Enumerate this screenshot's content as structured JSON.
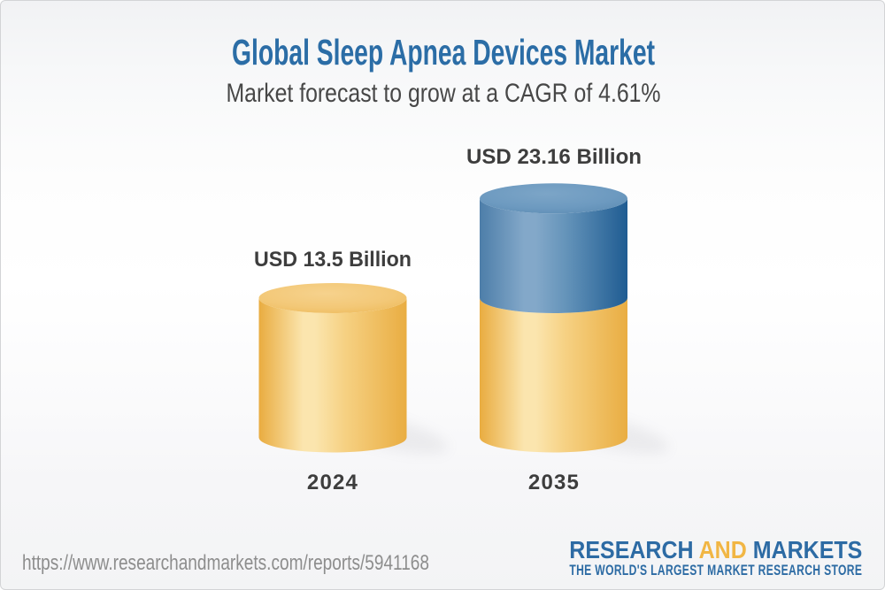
{
  "header": {
    "title": "Global Sleep Apnea Devices Market",
    "subtitle": "Market forecast to grow at a CAGR of 4.61%",
    "title_color": "#2b6da6",
    "subtitle_color": "#474747"
  },
  "chart_data": {
    "type": "bar",
    "subtype": "3d-cylinder",
    "title": "Global Sleep Apnea Devices Market",
    "subtitle": "Market forecast to grow at a CAGR of 4.61%",
    "unit": "USD Billion",
    "cagr_percent": 4.61,
    "categories": [
      "2024",
      "2035"
    ],
    "values": [
      13.5,
      23.16
    ],
    "bars": [
      {
        "category": "2024",
        "value": 13.5,
        "value_label": "USD 13.5 Billion",
        "stack": [
          {
            "value": 13.5,
            "color_key": "gold"
          }
        ]
      },
      {
        "category": "2035",
        "value": 23.16,
        "value_label": "USD 23.16 Billion",
        "stack": [
          {
            "value": 13.5,
            "color_key": "gold"
          },
          {
            "value": 9.66,
            "color_key": "blue"
          }
        ]
      }
    ],
    "label_color": "#3d3d3d",
    "colors": {
      "gold": {
        "body_left": "#e9ac40",
        "body_highlight": "#fbe5ae",
        "body_mid": "#f6d183",
        "body_right": "#e9ad42",
        "top_center": "#f6d28d",
        "top_mid": "#f3c877",
        "top_edge": "#eebc5e"
      },
      "blue": {
        "body_left": "#4d7ea9",
        "body_highlight": "#83a8c9",
        "body_mid": "#6594ba",
        "body_right": "#1f5c92",
        "top_center": "#7ca5c7",
        "top_mid": "#6d9ac0",
        "top_edge": "#5e8db4"
      },
      "shadow": "#8d8d96"
    }
  },
  "footer": {
    "url": "https://www.researchandmarkets.com/reports/5941168",
    "url_color": "#8d8d8d",
    "logo": {
      "word1": "RESEARCH",
      "word2": "AND",
      "word3": "MARKETS",
      "tagline": "THE WORLD'S LARGEST MARKET RESEARCH STORE",
      "blue": "#2d6ba4",
      "gold": "#f1b644"
    }
  }
}
